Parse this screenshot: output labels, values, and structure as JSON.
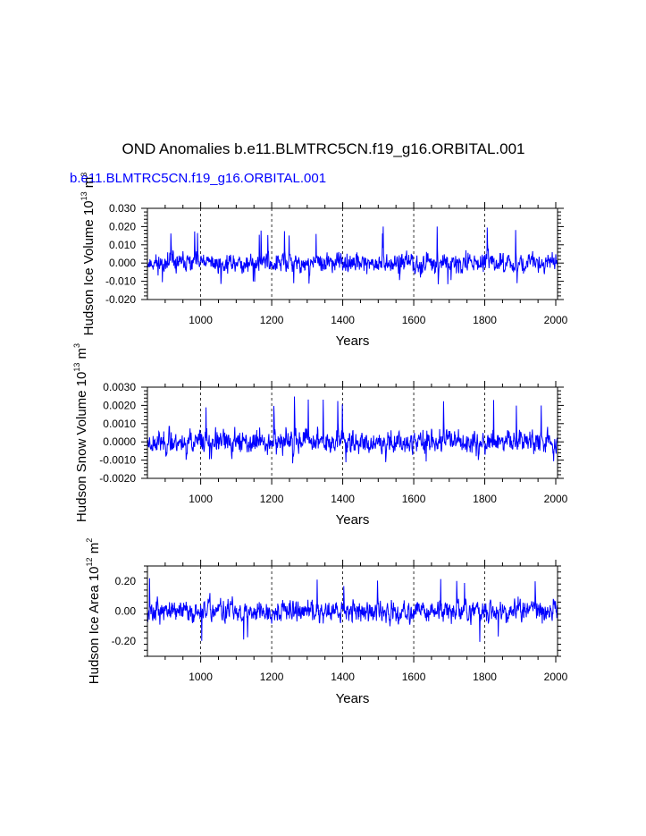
{
  "title": "OND Anomalies b.e11.BLMTRC5CN.f19_g16.ORBITAL.001",
  "subtitle": "b.e11.BLMTRC5CN.f19_g16.ORBITAL.001",
  "colors": {
    "series": "#0000ff",
    "subtitle": "#0000ff",
    "axis": "#000000"
  },
  "chart_data": [
    {
      "type": "line",
      "title": "",
      "xlabel": "Years",
      "ylabel": "Hudson Ice Volume 10",
      "ylabel_sup": "13",
      "ylabel_unit": "m",
      "ylabel_unit_sup": "3",
      "xlim": [
        850,
        2005
      ],
      "ylim": [
        -0.02,
        0.03
      ],
      "xticks": [
        1000,
        1200,
        1400,
        1600,
        1800,
        2000
      ],
      "xtick_labels": [
        "1000",
        "1200",
        "1400",
        "1600",
        "1800",
        "2000"
      ],
      "yticks": [
        -0.02,
        -0.01,
        0.0,
        0.01,
        0.02,
        0.03
      ],
      "ytick_labels": [
        "-0.020",
        "-0.010",
        "0.000",
        "0.010",
        "0.020",
        "0.030"
      ],
      "grid_x": [
        1000,
        1200,
        1400,
        1600,
        1800
      ],
      "series": [
        {
          "name": "Hudson Ice Volume",
          "amplitude": 0.0045,
          "peak_max": 0.02,
          "peak_min": -0.012,
          "x_start": 850,
          "x_end": 2005,
          "seed": 11
        }
      ]
    },
    {
      "type": "line",
      "title": "",
      "xlabel": "Years",
      "ylabel": "Hudson Snow Volume 10",
      "ylabel_sup": "13",
      "ylabel_unit": "m",
      "ylabel_unit_sup": "3",
      "xlim": [
        850,
        2005
      ],
      "ylim": [
        -0.002,
        0.003
      ],
      "xticks": [
        1000,
        1200,
        1400,
        1600,
        1800,
        2000
      ],
      "xtick_labels": [
        "1000",
        "1200",
        "1400",
        "1600",
        "1800",
        "2000"
      ],
      "yticks": [
        -0.002,
        -0.001,
        0.0,
        0.001,
        0.002,
        0.003
      ],
      "ytick_labels": [
        "-0.0020",
        "-0.0010",
        "0.0000",
        "0.0010",
        "0.0020",
        "0.0030"
      ],
      "grid_x": [
        1000,
        1200,
        1400,
        1600,
        1800
      ],
      "series": [
        {
          "name": "Hudson Snow Volume",
          "amplitude": 0.00055,
          "peak_max": 0.0025,
          "peak_min": -0.0012,
          "x_start": 850,
          "x_end": 2005,
          "seed": 23
        }
      ]
    },
    {
      "type": "line",
      "title": "",
      "xlabel": "Years",
      "ylabel": "Hudson Ice Area 10",
      "ylabel_sup": "12",
      "ylabel_unit": "m",
      "ylabel_unit_sup": "2",
      "xlim": [
        850,
        2005
      ],
      "ylim": [
        -0.3,
        0.3
      ],
      "xticks": [
        1000,
        1200,
        1400,
        1600,
        1800,
        2000
      ],
      "xtick_labels": [
        "1000",
        "1200",
        "1400",
        "1600",
        "1800",
        "2000"
      ],
      "yticks": [
        -0.2,
        0.0,
        0.2
      ],
      "ytick_labels": [
        "-0.20",
        "0.00",
        "0.20"
      ],
      "grid_x": [
        1000,
        1200,
        1400,
        1600,
        1800
      ],
      "series": [
        {
          "name": "Hudson Ice Area",
          "amplitude": 0.065,
          "peak_max": 0.22,
          "peak_min": -0.21,
          "x_start": 850,
          "x_end": 2005,
          "seed": 37
        }
      ]
    }
  ]
}
